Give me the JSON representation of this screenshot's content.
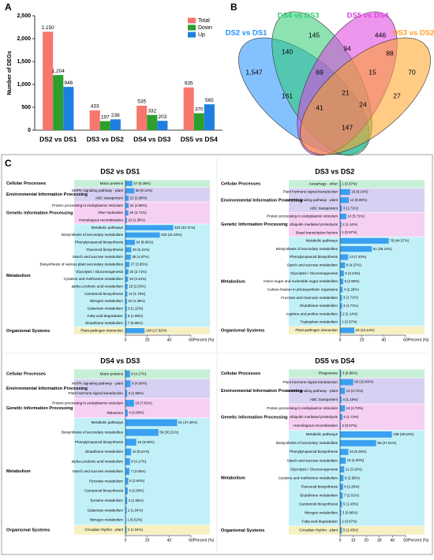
{
  "panel_labels": [
    "A",
    "B",
    "C"
  ],
  "chart_data": [
    {
      "type": "bar",
      "ylabel": "Number of DEGs",
      "categories": [
        "DS2 vs DS1",
        "DS3 vs DS2",
        "DS4 vs DS3",
        "DS5 vs DS4"
      ],
      "series": [
        {
          "name": "Total",
          "color": "#f8766d",
          "values": [
            2150,
            433,
            535,
            935
          ],
          "value_labels": [
            "2,150",
            "433",
            "535",
            "935"
          ]
        },
        {
          "name": "Down",
          "color": "#2ca02c",
          "values": [
            1204,
            197,
            332,
            370
          ],
          "value_labels": [
            "1,204",
            "197",
            "332",
            "370"
          ]
        },
        {
          "name": "Up",
          "color": "#1f7fe0",
          "values": [
            946,
            236,
            203,
            565
          ],
          "value_labels": [
            "946",
            "236",
            "203",
            "565"
          ]
        }
      ],
      "ylim": [
        0,
        2500
      ],
      "yticks": [
        0,
        500,
        {
          "value": 1000,
          "label": "1,000"
        },
        {
          "value": 1500,
          "label": "1,500"
        },
        {
          "value": 2000,
          "label": "2,000"
        },
        {
          "value": 2500,
          "label": "2,500"
        }
      ],
      "legend": "top-right"
    },
    {
      "type": "venn",
      "sets": [
        {
          "name": "DS2 vs DS1",
          "color": "#1e90ff"
        },
        {
          "name": "DS4 vs DS3",
          "color": "#2ecc71"
        },
        {
          "name": "DS5 vs DS4",
          "color": "#e040e0"
        },
        {
          "name": "DS3 vs DS2",
          "color": "#ffa020"
        }
      ],
      "values": [
        1547,
        145,
        446,
        70,
        140,
        94,
        88,
        69,
        15,
        21,
        161,
        41,
        24,
        27,
        147
      ],
      "value_labels": [
        "1,547",
        "145",
        "446",
        "70",
        "140",
        "94",
        "88",
        "69",
        "15",
        "21",
        "161",
        "41",
        "24",
        "27",
        "147"
      ]
    },
    {
      "type": "barh",
      "title": "DS2 vs DS1",
      "color": "#3aa0f0",
      "xlabel": "Percent (%)",
      "xlim": [
        0,
        60
      ],
      "xticks": [
        0,
        20,
        40,
        60
      ],
      "groups": [
        {
          "name": "Cellular Processes",
          "color": "#c6f0d6",
          "categories": [
            "Motor proteins"
          ],
          "values": [
            6.36
          ],
          "value_labels": [
            "47 (6.36%)"
          ]
        },
        {
          "name": "Environmental Information Processing",
          "color": "#d8d0f2",
          "categories": [
            "MAPK signaling pathway - plant",
            "ABC transporters"
          ],
          "values": [
            8.12,
            2.98
          ],
          "value_labels": [
            "60 (8.12%)",
            "22 (2.98%)"
          ]
        },
        {
          "name": "Genetic Information Processing",
          "color": "#f6d0f2",
          "categories": [
            "Protein processing in endoplasmic reticulum",
            "DNA replication",
            "Homologous recombination"
          ],
          "values": [
            2.98,
            2.71,
            1.35
          ],
          "value_labels": [
            "22 (2.98%)",
            "20 (2.71%)",
            "10 (1.35%)"
          ]
        },
        {
          "name": "Metabolism",
          "color": "#c2f0f8",
          "categories": [
            "Metabolic pathways",
            "Biosynthesis of secondary metabolites",
            "Phenylpropanoid biosynthesis",
            "Flavonoid biosynthesis",
            "Starch and sucrose metabolism",
            "Biosynthesis of various plant secondary metabolites",
            "Glycolysis / Gluconeogenesis",
            "Cysteine and methionine metabolism",
            "alpha-Linolenic acid metabolism",
            "Carotenoid biosynthesis",
            "Nitrogen metabolism",
            "Galactose metabolism",
            "Fatty acid degradation",
            "Glutathione metabolism"
          ],
          "values": [
            43.71,
            31.53,
            8.66,
            5.41,
            4.87,
            3.65,
            2.71,
            2.44,
            2.03,
            1.76,
            1.35,
            1.22,
            1.08,
            0.95
          ],
          "value_labels": [
            "323 (43.71%)",
            "233 (31.53%)",
            "64 (8.66%)",
            "40 (5.41%)",
            "36 (4.87%)",
            "27 (3.65%)",
            "20 (2.71%)",
            "18 (2.44%)",
            "15 (2.03%)",
            "13 (1.76%)",
            "10 (1.35%)",
            "9 (1.22%)",
            "8 (1.08%)",
            "7 (0.95%)"
          ]
        },
        {
          "name": "Organismal Systems",
          "color": "#f6f0c2",
          "categories": [
            "Plant-pathogen interaction"
          ],
          "values": [
            17.52
          ],
          "value_labels": [
            "130 (17.52%)"
          ]
        }
      ]
    },
    {
      "type": "barh",
      "title": "DS3 vs DS2",
      "color": "#3aa0f0",
      "xlabel": "Percent (%)",
      "xlim": [
        0,
        60
      ],
      "xticks": [
        0,
        20,
        40,
        60
      ],
      "groups": [
        {
          "name": "Cellular Processes",
          "color": "#c6f0d6",
          "categories": [
            "Autophagy - other"
          ],
          "values": [
            0.57
          ],
          "value_labels": [
            "1 (0.57%)"
          ]
        },
        {
          "name": "Environmental Information Processing",
          "color": "#d8d0f2",
          "categories": [
            "Plant hormone signal transduction",
            "MAPK signaling pathway - plant",
            "ABC transporters"
          ],
          "values": [
            9.14,
            8.0,
            1.71
          ],
          "value_labels": [
            "16 (9.14%)",
            "14 (8.00%)",
            "3 (1.71%)"
          ]
        },
        {
          "name": "Genetic Information Processing",
          "color": "#f6d0f2",
          "categories": [
            "Protein processing in endoplasmic reticulum",
            "Ubiquitin mediated proteolysis",
            "Basal transcription factors"
          ],
          "values": [
            5.71,
            1.14,
            0.57
          ],
          "value_labels": [
            "10 (5.71%)",
            "2 (1.14%)",
            "1 (0.57%)"
          ]
        },
        {
          "name": "Metabolism",
          "color": "#c2f0f8",
          "categories": [
            "Metabolic pathways",
            "Biosynthesis of secondary metabolites",
            "Phenylpropanoid biosynthesis",
            "Starch and sucrose metabolism",
            "Glycolysis / Gluconeogenesis",
            "Amino sugar and nucleotide sugar metabolism",
            "Carbon fixation in photosynthetic organisms",
            "Fructose and mannose metabolism",
            "Glutathione metabolism",
            "Arginine and proline metabolism",
            "Tryptophan metabolism"
          ],
          "values": [
            44.57,
            29.14,
            7.43,
            4.57,
            3.43,
            2.86,
            2.29,
            1.71,
            1.71,
            1.14,
            0.57
          ],
          "value_labels": [
            "78 (44.57%)",
            "51 (29.14%)",
            "13 (7.43%)",
            "8 (4.57%)",
            "6 (3.43%)",
            "5 (2.86%)",
            "4 (2.29%)",
            "3 (1.71%)",
            "3 (1.71%)",
            "2 (1.14%)",
            "1 (0.57%)"
          ]
        },
        {
          "name": "Organismal Systems",
          "color": "#f6f0c2",
          "categories": [
            "Plant-pathogen interaction"
          ],
          "values": [
            13.14
          ],
          "value_labels": [
            "23 (13.14%)"
          ]
        }
      ]
    },
    {
      "type": "barh",
      "title": "DS4 vs DS3",
      "color": "#3aa0f0",
      "xlabel": "Percent (%)",
      "xlim": [
        0,
        60
      ],
      "xticks": [
        0,
        20,
        40,
        60
      ],
      "groups": [
        {
          "name": "Cellular Processes",
          "color": "#c6f0d6",
          "categories": [
            "Motor proteins"
          ],
          "values": [
            4.17
          ],
          "value_labels": [
            "8 (4.17%)"
          ]
        },
        {
          "name": "Environmental Information Processing",
          "color": "#d8d0f2",
          "categories": [
            "MAPK signaling pathway - plant",
            "Plant hormone signal transduction"
          ],
          "values": [
            4.69,
            1.56
          ],
          "value_labels": [
            "9 (4.69%)",
            "3 (1.56%)"
          ]
        },
        {
          "name": "Genetic Information Processing",
          "color": "#f6d0f2",
          "categories": [
            "Protein processing in endoplasmic reticulum",
            "Ribosome"
          ],
          "values": [
            7.81,
            2.08
          ],
          "value_labels": [
            "15 (7.81%)",
            "4 (2.08%)"
          ]
        },
        {
          "name": "Metabolism",
          "color": "#c2f0f8",
          "categories": [
            "Metabolic pathways",
            "Biosynthesis of secondary metabolites",
            "Phenylpropanoid biosynthesis",
            "Glutathione metabolism",
            "alpha-Linolenic acid metabolism",
            "Starch and sucrose metabolism",
            "Pyruvate metabolism",
            "Carotenoid biosynthesis",
            "Tyrosine metabolism",
            "Galactose metabolism",
            "Nitrogen metabolism"
          ],
          "values": [
            47.4,
            30.21,
            9.9,
            5.21,
            4.17,
            3.65,
            2.6,
            2.08,
            1.56,
            1.04,
            0.52
          ],
          "value_labels": [
            "91 (47.40%)",
            "58 (30.21%)",
            "19 (9.90%)",
            "10 (5.21%)",
            "8 (4.17%)",
            "7 (3.65%)",
            "5 (2.60%)",
            "4 (2.08%)",
            "3 (1.56%)",
            "2 (1.04%)",
            "1 (0.52%)"
          ]
        },
        {
          "name": "Organismal Systems",
          "color": "#f6f0c2",
          "categories": [
            "Circadian rhythm - plant"
          ],
          "values": [
            1.04
          ],
          "value_labels": [
            "2 (1.04%)"
          ]
        }
      ]
    },
    {
      "type": "barh",
      "title": "DS5 vs DS4",
      "color": "#3aa0f0",
      "xlabel": "Percent (%)",
      "xlim": [
        0,
        50
      ],
      "xticks": [
        0,
        10,
        20,
        30,
        40,
        50
      ],
      "groups": [
        {
          "name": "Cellular Processes",
          "color": "#c6f0d6",
          "categories": [
            "Phagosome"
          ],
          "values": [
            0.86
          ],
          "value_labels": [
            "3 (0.86%)"
          ]
        },
        {
          "name": "Environmental Information Processing",
          "color": "#d8d0f2",
          "categories": [
            "Plant hormone signal transduction",
            "MAPK signaling pathway - plant",
            "ABC transporters"
          ],
          "values": [
            10.03,
            3.72,
            1.15
          ],
          "value_labels": [
            "35 (10.03%)",
            "13 (3.72%)",
            "4 (1.15%)"
          ]
        },
        {
          "name": "Genetic Information Processing",
          "color": "#f6d0f2",
          "categories": [
            "Protein processing in endoplasmic reticulum",
            "Ubiquitin mediated proteolysis",
            "Homologous recombination"
          ],
          "values": [
            3.72,
            1.72,
            0.57
          ],
          "value_labels": [
            "13 (3.72%)",
            "6 (1.72%)",
            "2 (0.57%)"
          ]
        },
        {
          "name": "Metabolism",
          "color": "#c2f0f8",
          "categories": [
            "Metabolic pathways",
            "Biosynthesis of secondary metabolites",
            "Phenylpropanoid biosynthesis",
            "Starch and sucrose metabolism",
            "Glycolysis / Gluconeogenesis",
            "Cysteine and methionine metabolism",
            "Flavonoid biosynthesis",
            "Glutathione metabolism",
            "Carotenoid biosynthesis",
            "Nitrogen metabolism",
            "Fatty acid degradation"
          ],
          "values": [
            39.54,
            27.51,
            6.3,
            4.3,
            3.15,
            2.58,
            2.29,
            2.01,
            1.43,
            0.86,
            0.57
          ],
          "value_labels": [
            "138 (39.54%)",
            "96 (27.51%)",
            "22 (6.30%)",
            "15 (4.30%)",
            "11 (3.15%)",
            "9 (2.58%)",
            "8 (2.29%)",
            "7 (2.01%)",
            "5 (1.43%)",
            "3 (0.86%)",
            "2 (0.57%)"
          ]
        },
        {
          "name": "Organismal Systems",
          "color": "#f6f0c2",
          "categories": [
            "Circadian rhythm - plant"
          ],
          "values": [
            1.43
          ],
          "value_labels": [
            "5 (1.43%)"
          ]
        }
      ]
    }
  ]
}
